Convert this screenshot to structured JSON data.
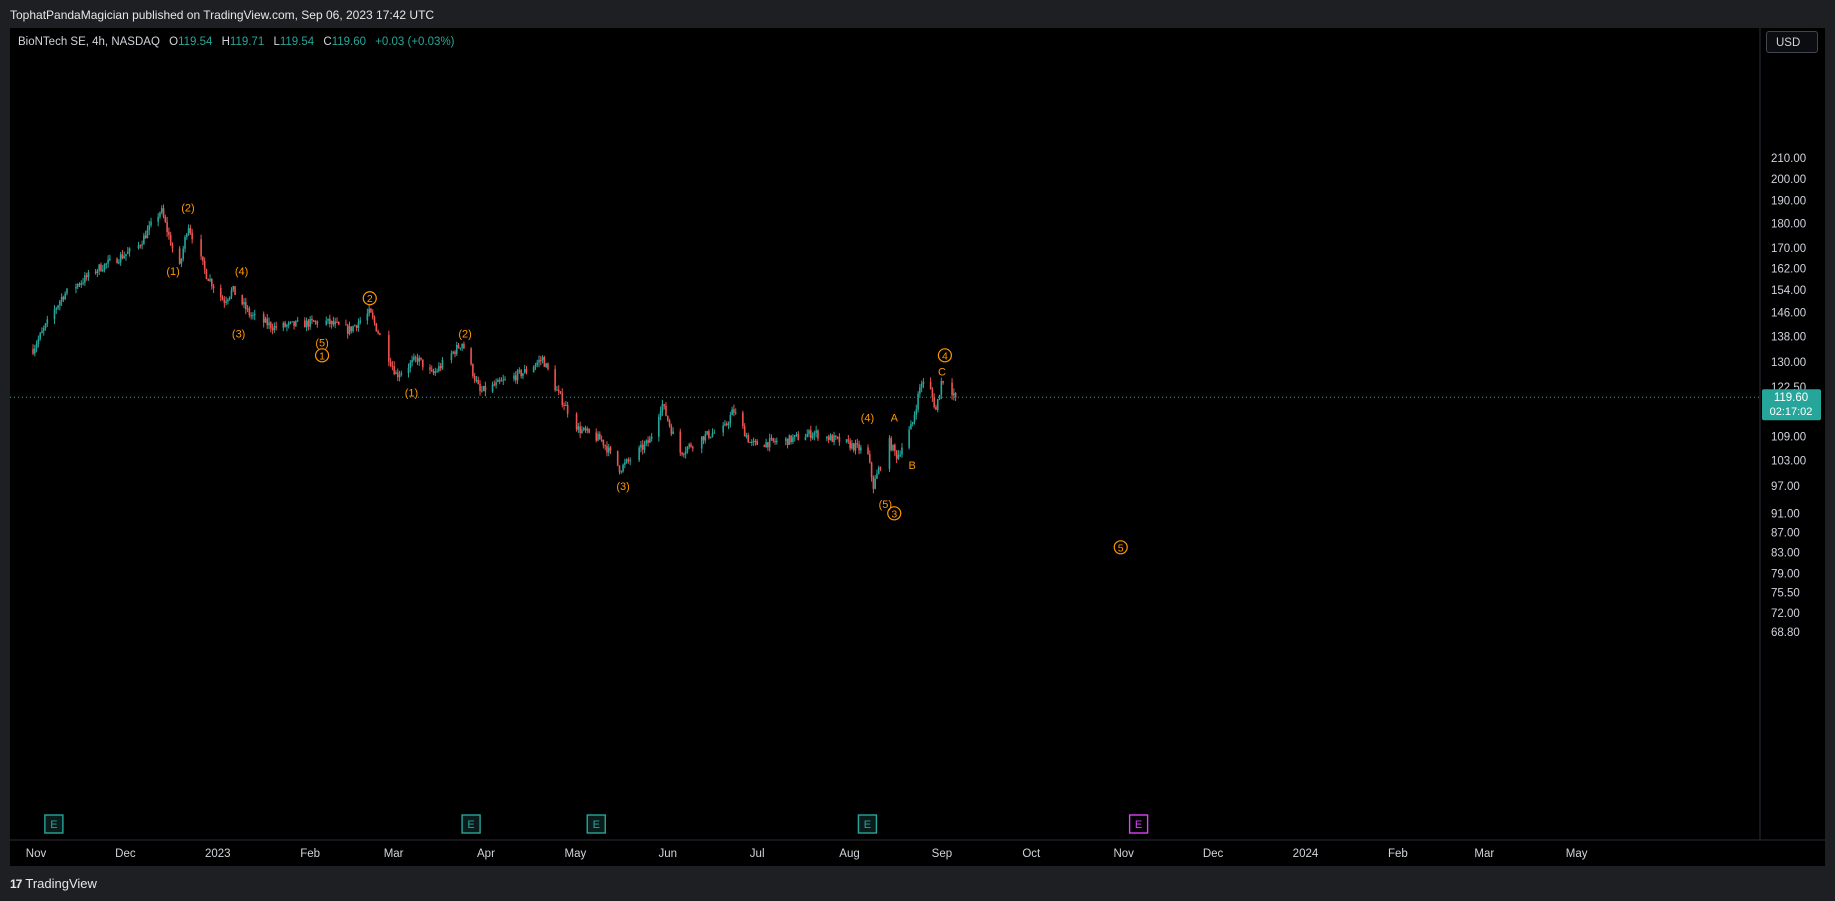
{
  "header": {
    "published": "TophatPandaMagician published on TradingView.com, Sep 06, 2023 17:42 UTC"
  },
  "legend": {
    "symbol": "BioNTech SE, 4h, NASDAQ",
    "o_label": "O",
    "o": "119.54",
    "h_label": "H",
    "h": "119.71",
    "l_label": "L",
    "l": "119.54",
    "c_label": "C",
    "c": "119.60",
    "change": "+0.03 (+0.03%)"
  },
  "currency": "USD",
  "price_tag": {
    "price": "119.60",
    "countdown": "02:17:02"
  },
  "footer": {
    "logo_mark": "17",
    "brand": "TradingView"
  },
  "colors": {
    "up": "#26a69a",
    "down": "#ef5350",
    "wave": "#ff9800",
    "earnings": "#26a69a",
    "earnings_future": "#e040fb",
    "bg": "#000000"
  },
  "chart_data": {
    "type": "candlestick",
    "log_scale": true,
    "x_axis": [
      "Nov",
      "Dec",
      "2023",
      "Feb",
      "Mar",
      "Apr",
      "May",
      "Jun",
      "Jul",
      "Aug",
      "Sep",
      "Oct",
      "Nov",
      "Dec",
      "2024",
      "Feb",
      "Mar",
      "May"
    ],
    "y_ticks": [
      "210.00",
      "200.00",
      "190.00",
      "180.00",
      "170.00",
      "162.00",
      "154.00",
      "146.00",
      "138.00",
      "130.00",
      "122.50",
      "115.00",
      "109.00",
      "103.00",
      "97.00",
      "91.00",
      "87.00",
      "83.00",
      "79.00",
      "75.50",
      "72.00",
      "68.80"
    ],
    "close_path": [
      {
        "d": "2022-10-31",
        "p": 134
      },
      {
        "d": "2022-11-10",
        "p": 152
      },
      {
        "d": "2022-11-22",
        "p": 162
      },
      {
        "d": "2022-12-05",
        "p": 170
      },
      {
        "d": "2022-12-13",
        "p": 186
      },
      {
        "d": "2022-12-19",
        "p": 161
      },
      {
        "d": "2022-12-22",
        "p": 180
      },
      {
        "d": "2022-12-28",
        "p": 160
      },
      {
        "d": "2023-01-03",
        "p": 150
      },
      {
        "d": "2023-01-06",
        "p": 154
      },
      {
        "d": "2023-01-12",
        "p": 145
      },
      {
        "d": "2023-01-20",
        "p": 141
      },
      {
        "d": "2023-02-06",
        "p": 143
      },
      {
        "d": "2023-02-14",
        "p": 140
      },
      {
        "d": "2023-02-21",
        "p": 146
      },
      {
        "d": "2023-03-02",
        "p": 126
      },
      {
        "d": "2023-03-09",
        "p": 131
      },
      {
        "d": "2023-03-14",
        "p": 126
      },
      {
        "d": "2023-03-24",
        "p": 136
      },
      {
        "d": "2023-03-30",
        "p": 121
      },
      {
        "d": "2023-04-14",
        "p": 127
      },
      {
        "d": "2023-04-20",
        "p": 131
      },
      {
        "d": "2023-04-25",
        "p": 121
      },
      {
        "d": "2023-05-02",
        "p": 111
      },
      {
        "d": "2023-05-10",
        "p": 108
      },
      {
        "d": "2023-05-16",
        "p": 101
      },
      {
        "d": "2023-05-26",
        "p": 108
      },
      {
        "d": "2023-05-30",
        "p": 118
      },
      {
        "d": "2023-06-05",
        "p": 105
      },
      {
        "d": "2023-06-13",
        "p": 109
      },
      {
        "d": "2023-06-20",
        "p": 111
      },
      {
        "d": "2023-06-23",
        "p": 116
      },
      {
        "d": "2023-06-29",
        "p": 107
      },
      {
        "d": "2023-07-11",
        "p": 108
      },
      {
        "d": "2023-07-20",
        "p": 110
      },
      {
        "d": "2023-08-01",
        "p": 107
      },
      {
        "d": "2023-08-07",
        "p": 105
      },
      {
        "d": "2023-08-09",
        "p": 97
      },
      {
        "d": "2023-08-14",
        "p": 108
      },
      {
        "d": "2023-08-17",
        "p": 104
      },
      {
        "d": "2023-08-22",
        "p": 112
      },
      {
        "d": "2023-08-25",
        "p": 124
      },
      {
        "d": "2023-08-28",
        "p": 122
      },
      {
        "d": "2023-08-30",
        "p": 116
      },
      {
        "d": "2023-09-01",
        "p": 125
      },
      {
        "d": "2023-09-06",
        "p": 119.6
      }
    ],
    "current_price": 119.6,
    "wave_labels": [
      {
        "t": "(1)",
        "d": "2022-12-17",
        "p": 161,
        "circle": false
      },
      {
        "t": "(2)",
        "d": "2022-12-22",
        "p": 187,
        "circle": false
      },
      {
        "t": "(3)",
        "d": "2023-01-08",
        "p": 139,
        "circle": false
      },
      {
        "t": "(4)",
        "d": "2023-01-09",
        "p": 161,
        "circle": false
      },
      {
        "t": "(5)",
        "d": "2023-02-05",
        "p": 136,
        "circle": false
      },
      {
        "t": "1",
        "d": "2023-02-05",
        "p": 132,
        "circle": true
      },
      {
        "t": "2",
        "d": "2023-02-21",
        "p": 151,
        "circle": true
      },
      {
        "t": "(1)",
        "d": "2023-03-07",
        "p": 121,
        "circle": false
      },
      {
        "t": "(2)",
        "d": "2023-03-25",
        "p": 139,
        "circle": false
      },
      {
        "t": "(3)",
        "d": "2023-05-17",
        "p": 97,
        "circle": false
      },
      {
        "t": "(4)",
        "d": "2023-08-07",
        "p": 114,
        "circle": false
      },
      {
        "t": "A",
        "d": "2023-08-16",
        "p": 114,
        "circle": false
      },
      {
        "t": "B",
        "d": "2023-08-22",
        "p": 102,
        "circle": false
      },
      {
        "t": "(5)",
        "d": "2023-08-13",
        "p": 93,
        "circle": false
      },
      {
        "t": "3",
        "d": "2023-08-16",
        "p": 91,
        "circle": true
      },
      {
        "t": "C",
        "d": "2023-09-01",
        "p": 127,
        "circle": false
      },
      {
        "t": "4",
        "d": "2023-09-02",
        "p": 132,
        "circle": true
      },
      {
        "t": "5",
        "d": "2023-10-31",
        "p": 84,
        "circle": true
      }
    ],
    "earnings": [
      {
        "d": "2022-11-07",
        "label": "E"
      },
      {
        "d": "2023-03-27",
        "label": "E"
      },
      {
        "d": "2023-05-08",
        "label": "E"
      },
      {
        "d": "2023-08-07",
        "label": "E"
      },
      {
        "d": "2023-11-06",
        "label": "E",
        "future": true
      }
    ]
  }
}
